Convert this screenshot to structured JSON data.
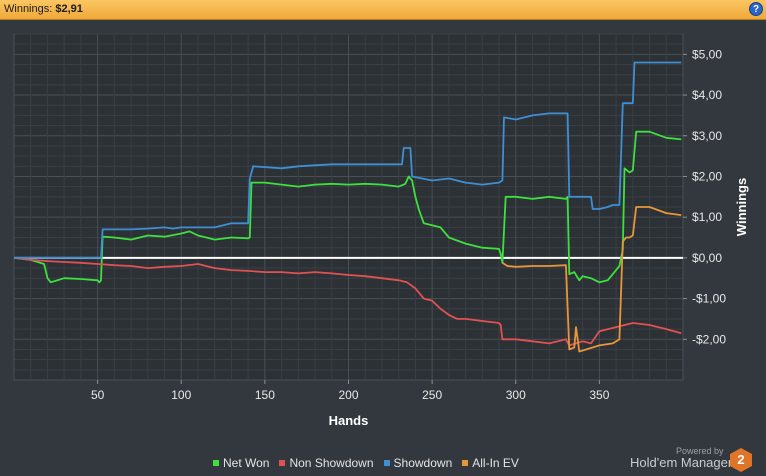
{
  "header": {
    "label": "Winnings:",
    "value": "$2,91",
    "help_icon": "?"
  },
  "chart_data": {
    "type": "line",
    "title": "",
    "xlabel": "Hands",
    "ylabel": "Winnings",
    "xlim": [
      0,
      400
    ],
    "ylim": [
      -3,
      5.5
    ],
    "x_ticks": [
      50,
      100,
      150,
      200,
      250,
      300,
      350
    ],
    "x_tick_labels": [
      "50",
      "100",
      "150",
      "200",
      "250",
      "300",
      "350"
    ],
    "y_ticks": [
      -2,
      -1,
      0,
      1,
      2,
      3,
      4,
      5
    ],
    "y_tick_labels": [
      "-$2,00",
      "-$1,00",
      "$0,00",
      "$1,00",
      "$2,00",
      "$3,00",
      "$4,00",
      "$5,00"
    ],
    "grid": true,
    "legend_position": "bottom",
    "series": [
      {
        "name": "Net Won",
        "color": "#3ee03e",
        "points": [
          [
            0,
            0
          ],
          [
            10,
            -0.05
          ],
          [
            18,
            -0.15
          ],
          [
            20,
            -0.5
          ],
          [
            22,
            -0.6
          ],
          [
            30,
            -0.5
          ],
          [
            40,
            -0.52
          ],
          [
            50,
            -0.55
          ],
          [
            51,
            -0.6
          ],
          [
            52,
            -0.55
          ],
          [
            53,
            0.52
          ],
          [
            60,
            0.5
          ],
          [
            70,
            0.45
          ],
          [
            80,
            0.55
          ],
          [
            90,
            0.52
          ],
          [
            100,
            0.6
          ],
          [
            105,
            0.65
          ],
          [
            110,
            0.55
          ],
          [
            115,
            0.5
          ],
          [
            120,
            0.45
          ],
          [
            130,
            0.5
          ],
          [
            140,
            0.48
          ],
          [
            141,
            0.5
          ],
          [
            142,
            1.85
          ],
          [
            150,
            1.85
          ],
          [
            160,
            1.8
          ],
          [
            170,
            1.75
          ],
          [
            180,
            1.8
          ],
          [
            190,
            1.82
          ],
          [
            200,
            1.8
          ],
          [
            210,
            1.82
          ],
          [
            220,
            1.8
          ],
          [
            230,
            1.75
          ],
          [
            234,
            1.82
          ],
          [
            236,
            2
          ],
          [
            238,
            1.9
          ],
          [
            240,
            1.5
          ],
          [
            242,
            1.2
          ],
          [
            245,
            0.85
          ],
          [
            250,
            0.8
          ],
          [
            255,
            0.75
          ],
          [
            260,
            0.5
          ],
          [
            270,
            0.35
          ],
          [
            280,
            0.25
          ],
          [
            290,
            0.22
          ],
          [
            291,
            0.1
          ],
          [
            292,
            -0.12
          ],
          [
            294,
            1.5
          ],
          [
            300,
            1.5
          ],
          [
            310,
            1.45
          ],
          [
            320,
            1.5
          ],
          [
            330,
            1.45
          ],
          [
            331,
            1.5
          ],
          [
            332,
            -0.4
          ],
          [
            335,
            -0.35
          ],
          [
            338,
            -0.55
          ],
          [
            340,
            -0.45
          ],
          [
            345,
            -0.5
          ],
          [
            350,
            -0.6
          ],
          [
            355,
            -0.55
          ],
          [
            360,
            -0.3
          ],
          [
            362,
            -0.2
          ],
          [
            364,
            0.2
          ],
          [
            365,
            2.2
          ],
          [
            368,
            2.1
          ],
          [
            370,
            2.15
          ],
          [
            372,
            3.1
          ],
          [
            380,
            3.1
          ],
          [
            390,
            2.95
          ],
          [
            399,
            2.91
          ]
        ]
      },
      {
        "name": "Non Showdown",
        "color": "#e05252",
        "points": [
          [
            0,
            0
          ],
          [
            10,
            -0.05
          ],
          [
            20,
            -0.08
          ],
          [
            30,
            -0.1
          ],
          [
            40,
            -0.12
          ],
          [
            50,
            -0.15
          ],
          [
            60,
            -0.18
          ],
          [
            70,
            -0.2
          ],
          [
            80,
            -0.25
          ],
          [
            90,
            -0.22
          ],
          [
            100,
            -0.2
          ],
          [
            110,
            -0.15
          ],
          [
            120,
            -0.25
          ],
          [
            130,
            -0.3
          ],
          [
            140,
            -0.32
          ],
          [
            150,
            -0.35
          ],
          [
            160,
            -0.35
          ],
          [
            170,
            -0.38
          ],
          [
            180,
            -0.35
          ],
          [
            190,
            -0.38
          ],
          [
            200,
            -0.42
          ],
          [
            210,
            -0.45
          ],
          [
            220,
            -0.5
          ],
          [
            230,
            -0.55
          ],
          [
            235,
            -0.6
          ],
          [
            240,
            -0.75
          ],
          [
            245,
            -1
          ],
          [
            250,
            -1.05
          ],
          [
            255,
            -1.25
          ],
          [
            260,
            -1.4
          ],
          [
            265,
            -1.5
          ],
          [
            270,
            -1.5
          ],
          [
            280,
            -1.55
          ],
          [
            290,
            -1.6
          ],
          [
            291,
            -1.65
          ],
          [
            292,
            -2
          ],
          [
            300,
            -2
          ],
          [
            310,
            -2.05
          ],
          [
            320,
            -2.1
          ],
          [
            330,
            -2
          ],
          [
            332,
            -2.15
          ],
          [
            340,
            -2.05
          ],
          [
            345,
            -2.1
          ],
          [
            350,
            -1.8
          ],
          [
            360,
            -1.7
          ],
          [
            370,
            -1.6
          ],
          [
            380,
            -1.65
          ],
          [
            390,
            -1.75
          ],
          [
            399,
            -1.85
          ]
        ]
      },
      {
        "name": "Showdown",
        "color": "#3f8fd4",
        "points": [
          [
            0,
            0
          ],
          [
            52,
            0
          ],
          [
            53,
            0.7
          ],
          [
            60,
            0.7
          ],
          [
            70,
            0.7
          ],
          [
            80,
            0.72
          ],
          [
            90,
            0.75
          ],
          [
            95,
            0.72
          ],
          [
            100,
            0.75
          ],
          [
            120,
            0.75
          ],
          [
            130,
            0.85
          ],
          [
            140,
            0.85
          ],
          [
            141,
            1.95
          ],
          [
            143,
            2.25
          ],
          [
            160,
            2.2
          ],
          [
            170,
            2.25
          ],
          [
            190,
            2.3
          ],
          [
            210,
            2.3
          ],
          [
            225,
            2.3
          ],
          [
            232,
            2.3
          ],
          [
            233,
            2.7
          ],
          [
            237,
            2.7
          ],
          [
            238,
            2
          ],
          [
            250,
            1.9
          ],
          [
            260,
            1.95
          ],
          [
            270,
            1.85
          ],
          [
            280,
            1.8
          ],
          [
            290,
            1.85
          ],
          [
            292,
            1.9
          ],
          [
            293,
            3.45
          ],
          [
            300,
            3.4
          ],
          [
            310,
            3.5
          ],
          [
            320,
            3.55
          ],
          [
            331,
            3.55
          ],
          [
            332,
            1.5
          ],
          [
            340,
            1.5
          ],
          [
            345,
            1.5
          ],
          [
            346,
            1.2
          ],
          [
            350,
            1.2
          ],
          [
            355,
            1.25
          ],
          [
            358,
            1.3
          ],
          [
            362,
            1.3
          ],
          [
            364,
            3.8
          ],
          [
            368,
            3.8
          ],
          [
            370,
            3.8
          ],
          [
            371,
            4.8
          ],
          [
            380,
            4.8
          ],
          [
            399,
            4.8
          ]
        ]
      },
      {
        "name": "All-In EV",
        "color": "#e8963a",
        "points": [
          [
            292,
            -0.12
          ],
          [
            295,
            -0.2
          ],
          [
            300,
            -0.22
          ],
          [
            310,
            -0.2
          ],
          [
            320,
            -0.2
          ],
          [
            330,
            -0.18
          ],
          [
            332,
            -2.25
          ],
          [
            335,
            -2.2
          ],
          [
            336,
            -1.7
          ],
          [
            338,
            -2.3
          ],
          [
            342,
            -2.25
          ],
          [
            350,
            -2.15
          ],
          [
            358,
            -2.1
          ],
          [
            362,
            -2
          ],
          [
            364,
            0.4
          ],
          [
            366,
            0.5
          ],
          [
            368,
            0.5
          ],
          [
            370,
            0.55
          ],
          [
            372,
            1.25
          ],
          [
            380,
            1.25
          ],
          [
            390,
            1.1
          ],
          [
            399,
            1.05
          ]
        ]
      }
    ]
  },
  "legend": {
    "items": [
      {
        "label": "Net Won",
        "color": "#3ee03e"
      },
      {
        "label": "Non Showdown",
        "color": "#e05252"
      },
      {
        "label": "Showdown",
        "color": "#3f8fd4"
      },
      {
        "label": "All-In EV",
        "color": "#e8963a"
      }
    ]
  },
  "footer": {
    "powered_by": "Powered by",
    "brand": "Hold'em Manager",
    "logo_text": "2"
  }
}
